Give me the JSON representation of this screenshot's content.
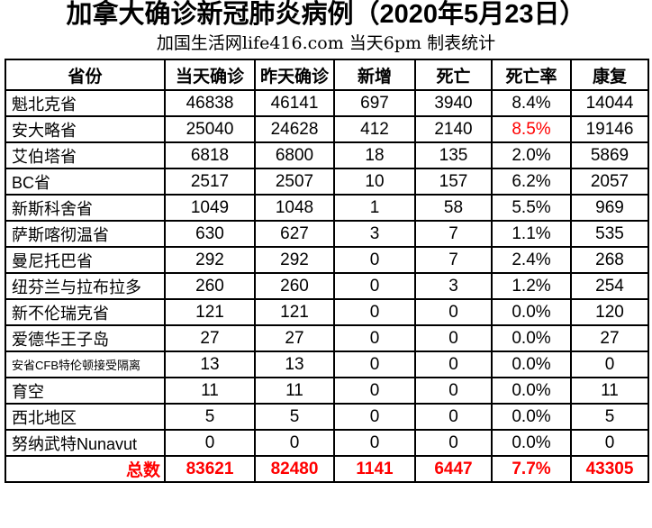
{
  "title": "加拿大确诊新冠肺炎病例（2020年5月23日）",
  "subtitle": "加国生活网life416.com 当天6pm 制表统计",
  "colors": {
    "highlight_red": "#FF0000",
    "text_black": "#000000",
    "border_black": "#000000",
    "background": "#FFFFFF"
  },
  "chart_data": {
    "type": "table",
    "title": "加拿大确诊新冠肺炎病例（2020年5月23日）",
    "subtitle": "加国生活网life416.com 当天6pm 制表统计",
    "columns": [
      "省份",
      "当天确诊",
      "昨天确诊",
      "新增",
      "死亡",
      "死亡率",
      "康复"
    ],
    "rows": [
      {
        "province": "魁北克省",
        "today_confirmed": 46838,
        "yesterday_confirmed": 46141,
        "new_cases": 697,
        "deaths": 3940,
        "death_rate": "8.4%",
        "recovered": 14044,
        "rate_emphasis": "normal",
        "small": false
      },
      {
        "province": "安大略省",
        "today_confirmed": 25040,
        "yesterday_confirmed": 24628,
        "new_cases": 412,
        "deaths": 2140,
        "death_rate": "8.5%",
        "recovered": 19146,
        "rate_emphasis": "red",
        "small": false
      },
      {
        "province": "艾伯塔省",
        "today_confirmed": 6818,
        "yesterday_confirmed": 6800,
        "new_cases": 18,
        "deaths": 135,
        "death_rate": "2.0%",
        "recovered": 5869,
        "rate_emphasis": "bold",
        "small": false
      },
      {
        "province": "BC省",
        "today_confirmed": 2517,
        "yesterday_confirmed": 2507,
        "new_cases": 10,
        "deaths": 157,
        "death_rate": "6.2%",
        "recovered": 2057,
        "rate_emphasis": "bold",
        "small": false
      },
      {
        "province": "新斯科舍省",
        "today_confirmed": 1049,
        "yesterday_confirmed": 1048,
        "new_cases": 1,
        "deaths": 58,
        "death_rate": "5.5%",
        "recovered": 969,
        "rate_emphasis": "bold",
        "small": false
      },
      {
        "province": "萨斯喀彻温省",
        "today_confirmed": 630,
        "yesterday_confirmed": 627,
        "new_cases": 3,
        "deaths": 7,
        "death_rate": "1.1%",
        "recovered": 535,
        "rate_emphasis": "bold",
        "small": false
      },
      {
        "province": "曼尼托巴省",
        "today_confirmed": 292,
        "yesterday_confirmed": 292,
        "new_cases": 0,
        "deaths": 7,
        "death_rate": "2.4%",
        "recovered": 268,
        "rate_emphasis": "bold",
        "small": false
      },
      {
        "province": "纽芬兰与拉布拉多",
        "today_confirmed": 260,
        "yesterday_confirmed": 260,
        "new_cases": 0,
        "deaths": 3,
        "death_rate": "1.2%",
        "recovered": 254,
        "rate_emphasis": "bold",
        "small": false
      },
      {
        "province": "新不伦瑞克省",
        "today_confirmed": 121,
        "yesterday_confirmed": 121,
        "new_cases": 0,
        "deaths": 0,
        "death_rate": "0.0%",
        "recovered": 120,
        "rate_emphasis": "bold",
        "small": false
      },
      {
        "province": "爱德华王子岛",
        "today_confirmed": 27,
        "yesterday_confirmed": 27,
        "new_cases": 0,
        "deaths": 0,
        "death_rate": "0.0%",
        "recovered": 27,
        "rate_emphasis": "bold",
        "small": false
      },
      {
        "province": "安省CFB特伦顿接受隔离",
        "today_confirmed": 13,
        "yesterday_confirmed": 13,
        "new_cases": 0,
        "deaths": 0,
        "death_rate": "0.0%",
        "recovered": 0,
        "rate_emphasis": "bold",
        "small": true
      },
      {
        "province": "育空",
        "today_confirmed": 11,
        "yesterday_confirmed": 11,
        "new_cases": 0,
        "deaths": 0,
        "death_rate": "0.0%",
        "recovered": 11,
        "rate_emphasis": "bold",
        "small": false
      },
      {
        "province": "西北地区",
        "today_confirmed": 5,
        "yesterday_confirmed": 5,
        "new_cases": 0,
        "deaths": 0,
        "death_rate": "0.0%",
        "recovered": 5,
        "rate_emphasis": "bold",
        "small": false
      },
      {
        "province": "努纳武特Nunavut",
        "today_confirmed": 0,
        "yesterday_confirmed": 0,
        "new_cases": 0,
        "deaths": 0,
        "death_rate": "0.0%",
        "recovered": 0,
        "rate_emphasis": "bold",
        "small": false
      }
    ],
    "total_row": {
      "label": "总数",
      "today_confirmed": 83621,
      "yesterday_confirmed": 82480,
      "new_cases": 1141,
      "deaths": 6447,
      "death_rate": "7.7%",
      "recovered": 43305
    }
  }
}
